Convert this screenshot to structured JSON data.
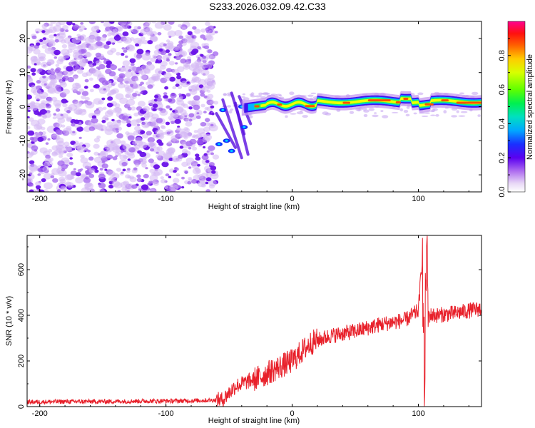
{
  "figure": {
    "title": "S233.2026.032.09.42.C33"
  },
  "chart_data": [
    {
      "type": "heatmap",
      "title": "S233.2026.032.09.42.C33",
      "xlabel": "Height of straight line (km)",
      "ylabel": "Frequency (Hz)",
      "xlim": [
        -210,
        150
      ],
      "ylim": [
        -25,
        25
      ],
      "xticks": [
        -200,
        -100,
        0,
        100
      ],
      "yticks": [
        -20,
        -10,
        0,
        10,
        20
      ],
      "colorbar": {
        "label": "Normalized spectral amplitude",
        "range": [
          0,
          1
        ],
        "ticks": [
          "0.0",
          "0.2",
          "0.4",
          "0.6",
          "0.8"
        ],
        "colors": [
          "#ffffff",
          "#d9b8f2",
          "#8a2be2",
          "#2020ff",
          "#00c0ff",
          "#00e070",
          "#90ff00",
          "#ffff00",
          "#ff8000",
          "#ff0000",
          "#ff0099"
        ]
      },
      "features": [
        {
          "name": "noise",
          "x_range": [
            -210,
            -60
          ],
          "freq_range": [
            -25,
            25
          ],
          "amplitude": 0.2
        },
        {
          "name": "transition",
          "x_range": [
            -60,
            -30
          ],
          "freq_range": [
            -15,
            5
          ],
          "amplitude": 0.4
        },
        {
          "name": "signal-band",
          "x_range": [
            -30,
            150
          ],
          "center_freq_hz": 1.5,
          "amplitude": 0.9
        }
      ]
    },
    {
      "type": "line",
      "xlabel": "Height of straight line (km)",
      "ylabel": "SNR (10 * v/v)",
      "xlim": [
        -210,
        150
      ],
      "ylim": [
        0,
        750
      ],
      "xticks": [
        -200,
        -100,
        0,
        100
      ],
      "yticks": [
        0,
        200,
        400,
        600
      ],
      "series": [
        {
          "name": "SNR",
          "color": "#e8202a",
          "x": [
            -210,
            -180,
            -150,
            -120,
            -90,
            -70,
            -55,
            -45,
            -35,
            -25,
            -15,
            0,
            15,
            30,
            50,
            70,
            90,
            100,
            103,
            105,
            106,
            108,
            115,
            130,
            150
          ],
          "y": [
            20,
            22,
            22,
            24,
            25,
            27,
            30,
            90,
            110,
            130,
            160,
            200,
            280,
            310,
            330,
            360,
            380,
            420,
            650,
            40,
            700,
            400,
            400,
            410,
            430
          ]
        }
      ]
    }
  ]
}
